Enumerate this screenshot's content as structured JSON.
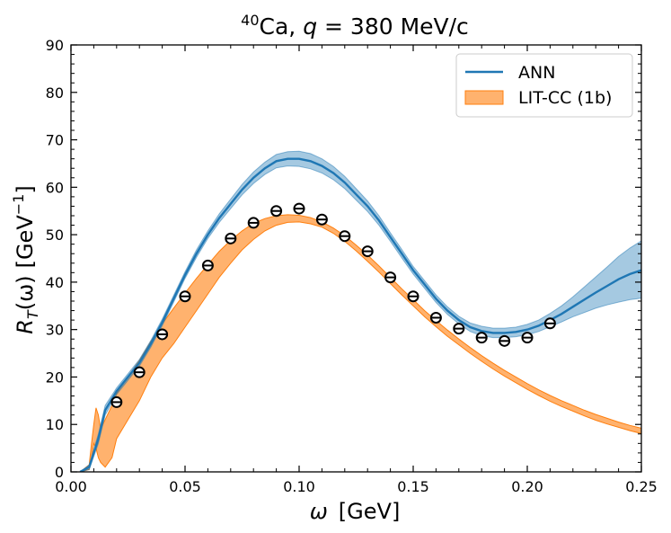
{
  "chart_data": {
    "type": "line",
    "title": {
      "superscript": "40",
      "element": "Ca, ",
      "var": "q",
      "rest": " = 380 MeV/c"
    },
    "xlabel": {
      "var": "ω",
      "unit": "[GeV]"
    },
    "ylabel": {
      "var": "R",
      "sub": "T",
      "arg": "(ω)",
      "unit": "[GeV",
      "exp": "−1",
      "close": "]"
    },
    "xlim": [
      0,
      0.25
    ],
    "ylim": [
      0,
      90
    ],
    "xticks": [
      0.0,
      0.05,
      0.1,
      0.15,
      0.2,
      0.25
    ],
    "xtick_labels": [
      "0.00",
      "0.05",
      "0.10",
      "0.15",
      "0.20",
      "0.25"
    ],
    "yticks": [
      0,
      10,
      20,
      30,
      40,
      50,
      60,
      70,
      80,
      90
    ],
    "ytick_labels": [
      "0",
      "10",
      "20",
      "30",
      "40",
      "50",
      "60",
      "70",
      "80",
      "90"
    ],
    "legend": {
      "position": "top-right",
      "entries": [
        {
          "label": "ANN",
          "kind": "line",
          "color": "#1f77b4"
        },
        {
          "label": "LIT-CC (1b)",
          "kind": "band",
          "color": "#ff7f0e"
        }
      ]
    },
    "series": [
      {
        "name": "ANN",
        "color": "#1f77b4",
        "x": [
          0.004,
          0.008,
          0.012,
          0.015,
          0.02,
          0.025,
          0.03,
          0.035,
          0.04,
          0.045,
          0.05,
          0.055,
          0.06,
          0.065,
          0.07,
          0.075,
          0.08,
          0.085,
          0.09,
          0.095,
          0.1,
          0.105,
          0.11,
          0.115,
          0.12,
          0.125,
          0.13,
          0.135,
          0.14,
          0.145,
          0.15,
          0.155,
          0.16,
          0.165,
          0.17,
          0.175,
          0.18,
          0.185,
          0.19,
          0.195,
          0.2,
          0.205,
          0.21,
          0.215,
          0.22,
          0.225,
          0.23,
          0.235,
          0.24,
          0.245,
          0.25
        ],
        "y": [
          0,
          1,
          7,
          13,
          17,
          20,
          23,
          27,
          31.5,
          36.5,
          41.5,
          46,
          50,
          53.5,
          56.5,
          59.5,
          62,
          64,
          65.5,
          66,
          66,
          65.5,
          64.5,
          63,
          61,
          58.5,
          56,
          53,
          49.5,
          46,
          42.5,
          39.5,
          36.5,
          34,
          32,
          30.5,
          29.7,
          29.3,
          29.3,
          29.5,
          30,
          30.8,
          32,
          33.3,
          34.8,
          36.3,
          37.8,
          39.2,
          40.6,
          41.7,
          42.5
        ],
        "band_lower": [
          0,
          0.5,
          6,
          12,
          16.3,
          19.3,
          22.3,
          26.3,
          30.8,
          35.8,
          40.8,
          45.2,
          49.2,
          52.6,
          55.5,
          58.4,
          60.8,
          62.7,
          64.1,
          64.5,
          64.4,
          63.9,
          63,
          61.6,
          59.7,
          57.3,
          54.9,
          52,
          48.6,
          45.1,
          41.7,
          38.7,
          35.7,
          33.2,
          31.2,
          29.6,
          28.7,
          28.3,
          28.3,
          28.5,
          28.9,
          29.6,
          30.6,
          31.6,
          32.7,
          33.6,
          34.5,
          35.2,
          35.8,
          36.3,
          36.6
        ],
        "band_upper": [
          0,
          1.5,
          8,
          14,
          17.7,
          20.7,
          23.7,
          27.7,
          32.2,
          37.2,
          42.2,
          46.8,
          50.8,
          54.4,
          57.5,
          60.6,
          63.2,
          65.3,
          66.9,
          67.5,
          67.6,
          67.1,
          66,
          64.4,
          62.3,
          59.7,
          57.1,
          54,
          50.4,
          46.9,
          43.3,
          40.3,
          37.3,
          34.8,
          32.8,
          31.4,
          30.7,
          30.3,
          30.3,
          30.5,
          31.1,
          32,
          33.4,
          35,
          36.9,
          39,
          41.1,
          43.2,
          45.4,
          47.2,
          48.7
        ]
      },
      {
        "name": "LIT-CC (1b)",
        "color": "#ff7f0e",
        "x": [
          0.004,
          0.008,
          0.009,
          0.01,
          0.011,
          0.012,
          0.013,
          0.015,
          0.018,
          0.02,
          0.025,
          0.03,
          0.035,
          0.04,
          0.045,
          0.05,
          0.055,
          0.06,
          0.065,
          0.07,
          0.075,
          0.08,
          0.085,
          0.09,
          0.095,
          0.1,
          0.105,
          0.11,
          0.115,
          0.12,
          0.125,
          0.13,
          0.135,
          0.14,
          0.145,
          0.15,
          0.155,
          0.16,
          0.165,
          0.17,
          0.175,
          0.18,
          0.185,
          0.19,
          0.195,
          0.2,
          0.205,
          0.21,
          0.215,
          0.22,
          0.225,
          0.23,
          0.235,
          0.24,
          0.245,
          0.25
        ],
        "band_lower": [
          0,
          0.5,
          3,
          6,
          5,
          3,
          2,
          1,
          3,
          7,
          11,
          15,
          20,
          24,
          27,
          30.5,
          34,
          37.5,
          41,
          44,
          46.8,
          49,
          50.8,
          52,
          52.6,
          52.7,
          52.3,
          51.6,
          50.3,
          48.6,
          46.6,
          44.4,
          42.1,
          39.7,
          37.3,
          35,
          32.7,
          30.6,
          28.6,
          26.8,
          25,
          23.3,
          21.7,
          20.2,
          18.8,
          17.4,
          16.1,
          14.9,
          13.8,
          12.8,
          11.8,
          10.9,
          10.1,
          9.4,
          8.7,
          8.1
        ],
        "band_upper": [
          0,
          1.5,
          6,
          10,
          13.5,
          12,
          9,
          11,
          14,
          16.5,
          20,
          23.5,
          27.5,
          31.2,
          34.5,
          37.7,
          40.8,
          43.7,
          46.5,
          48.8,
          50.8,
          52.4,
          53.4,
          54,
          54.2,
          54.1,
          53.6,
          52.7,
          51.4,
          49.8,
          47.8,
          45.7,
          43.4,
          41,
          38.6,
          36.3,
          34,
          31.9,
          29.9,
          28,
          26.2,
          24.5,
          22.9,
          21.4,
          20,
          18.6,
          17.3,
          16.1,
          15,
          14,
          13,
          12.1,
          11.3,
          10.5,
          9.8,
          9.2
        ]
      },
      {
        "name": "data points",
        "kind": "scatter",
        "x": [
          0.02,
          0.03,
          0.04,
          0.05,
          0.06,
          0.07,
          0.08,
          0.09,
          0.1,
          0.11,
          0.12,
          0.13,
          0.14,
          0.15,
          0.16,
          0.17,
          0.18,
          0.19,
          0.2,
          0.21
        ],
        "y": [
          14.7,
          21.0,
          29.0,
          37.0,
          43.5,
          49.2,
          52.5,
          55.0,
          55.5,
          53.2,
          49.7,
          46.5,
          41.0,
          37.0,
          32.5,
          30.2,
          28.3,
          27.6,
          28.3,
          31.3
        ]
      }
    ]
  }
}
